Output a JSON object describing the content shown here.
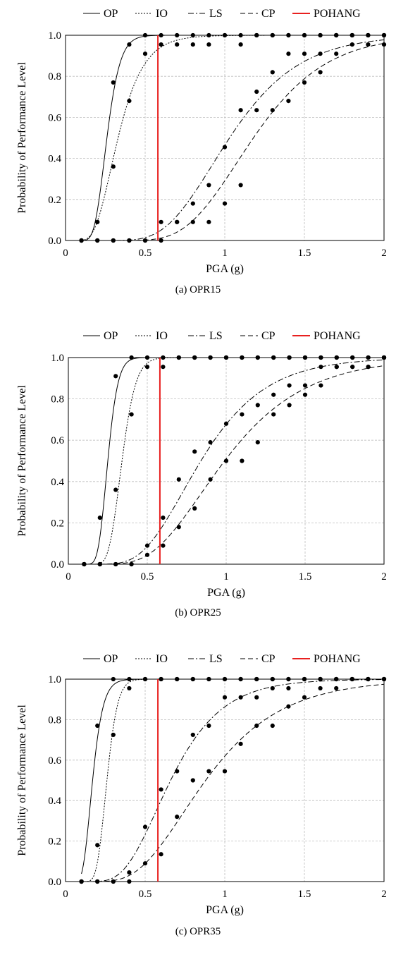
{
  "chart_data": [
    {
      "type": "line",
      "caption": "(a) OPR15",
      "xlabel": "PGA (g)",
      "ylabel": "Probability of Performance Level",
      "xlim": [
        0,
        2
      ],
      "ylim": [
        0,
        1
      ],
      "xticks": [
        "0",
        "0.5",
        "1",
        "1.5",
        "2"
      ],
      "yticks": [
        "0.0",
        "0.2",
        "0.4",
        "0.6",
        "0.8",
        "1.0"
      ],
      "grid": true,
      "legend": "top",
      "reference_line": {
        "name": "POHANG",
        "x": 0.58,
        "color": "#e8201f"
      },
      "series": [
        {
          "name": "OP",
          "style": "solid",
          "median": 0.26,
          "beta": 0.25,
          "x": [
            0.1,
            0.2,
            0.3,
            0.4,
            0.5,
            0.6,
            0.7,
            0.8,
            0.9,
            1.0,
            1.1,
            1.2,
            1.3,
            1.4,
            1.5,
            1.6,
            1.7,
            1.8,
            1.9,
            2.0
          ],
          "y": [
            0,
            0.09,
            0.77,
            0.955,
            1,
            1,
            1,
            1,
            1,
            1,
            1,
            1,
            1,
            1,
            1,
            1,
            1,
            1,
            1,
            1
          ]
        },
        {
          "name": "IO",
          "style": "dotted",
          "median": 0.33,
          "beta": 0.38,
          "x": [
            0.1,
            0.2,
            0.3,
            0.4,
            0.5,
            0.6,
            0.7,
            0.8,
            0.9,
            1.0,
            1.1,
            1.2,
            1.3,
            1.4,
            1.5,
            1.6,
            1.7,
            1.8,
            1.9,
            2.0
          ],
          "y": [
            0,
            0.09,
            0.36,
            0.68,
            0.91,
            0.955,
            0.955,
            0.955,
            0.955,
            1,
            0.955,
            1,
            1,
            1,
            1,
            1,
            1,
            1,
            1,
            1
          ]
        },
        {
          "name": "LS",
          "style": "dashdot",
          "median": 1.03,
          "beta": 0.33,
          "x": [
            0.1,
            0.2,
            0.3,
            0.4,
            0.5,
            0.6,
            0.7,
            0.8,
            0.9,
            1.0,
            1.1,
            1.2,
            1.3,
            1.4,
            1.5,
            1.6,
            1.7,
            1.8,
            1.9,
            2.0
          ],
          "y": [
            0,
            0,
            0,
            0,
            0,
            0.09,
            0.09,
            0.18,
            0.27,
            0.455,
            0.635,
            0.725,
            0.82,
            0.91,
            0.91,
            0.91,
            1,
            1,
            1,
            1
          ]
        },
        {
          "name": "CP",
          "style": "dashed",
          "median": 1.18,
          "beta": 0.3,
          "x": [
            0.1,
            0.2,
            0.3,
            0.4,
            0.5,
            0.6,
            0.7,
            0.8,
            0.9,
            1.0,
            1.1,
            1.2,
            1.3,
            1.4,
            1.5,
            1.6,
            1.7,
            1.8,
            1.9,
            2.0
          ],
          "y": [
            0,
            0,
            0,
            0,
            0,
            0,
            0.09,
            0.09,
            0.09,
            0.18,
            0.27,
            0.635,
            0.635,
            0.68,
            0.77,
            0.82,
            0.91,
            0.955,
            0.955,
            0.955
          ]
        }
      ]
    },
    {
      "type": "line",
      "caption": "(b) OPR25",
      "xlabel": "PGA (g)",
      "ylabel": "Probability of Performance Level",
      "xlim": [
        0,
        2
      ],
      "ylim": [
        0,
        1
      ],
      "xticks": [
        "0",
        "0.5",
        "1",
        "1.5",
        "2"
      ],
      "yticks": [
        "0.0",
        "0.2",
        "0.4",
        "0.6",
        "0.8",
        "1.0"
      ],
      "grid": true,
      "legend": "top",
      "reference_line": {
        "name": "POHANG",
        "x": 0.58,
        "color": "#e8201f"
      },
      "series": [
        {
          "name": "OP",
          "style": "solid",
          "median": 0.25,
          "beta": 0.2,
          "x": [
            0.1,
            0.2,
            0.3,
            0.4,
            0.5,
            0.6,
            0.7,
            0.8,
            0.9,
            1.0,
            1.1,
            1.2,
            1.3,
            1.4,
            1.5,
            1.6,
            1.7,
            1.8,
            1.9,
            2.0
          ],
          "y": [
            0,
            0.225,
            0.91,
            1,
            1,
            1,
            1,
            1,
            1,
            1,
            1,
            1,
            1,
            1,
            1,
            1,
            1,
            1,
            1,
            1
          ]
        },
        {
          "name": "IO",
          "style": "dotted",
          "median": 0.34,
          "beta": 0.2,
          "x": [
            0.1,
            0.2,
            0.3,
            0.4,
            0.5,
            0.6,
            0.7,
            0.8,
            0.9,
            1.0,
            1.1,
            1.2,
            1.3,
            1.4,
            1.5,
            1.6,
            1.7,
            1.8,
            1.9,
            2.0
          ],
          "y": [
            0,
            0,
            0.36,
            0.725,
            0.955,
            0.955,
            1,
            1,
            1,
            1,
            1,
            1,
            1,
            1,
            1,
            1,
            1,
            1,
            1,
            1
          ]
        },
        {
          "name": "LS",
          "style": "dashdot",
          "median": 0.84,
          "beta": 0.38,
          "x": [
            0.1,
            0.2,
            0.3,
            0.4,
            0.5,
            0.6,
            0.7,
            0.8,
            0.9,
            1.0,
            1.1,
            1.2,
            1.3,
            1.4,
            1.5,
            1.6,
            1.7,
            1.8,
            1.9,
            2.0
          ],
          "y": [
            0,
            0,
            0,
            0,
            0.09,
            0.225,
            0.41,
            0.545,
            0.59,
            0.68,
            0.725,
            0.77,
            0.82,
            0.865,
            0.865,
            0.955,
            0.955,
            0.955,
            0.955,
            1
          ]
        },
        {
          "name": "CP",
          "style": "dashed",
          "median": 0.99,
          "beta": 0.4,
          "x": [
            0.1,
            0.2,
            0.3,
            0.4,
            0.5,
            0.6,
            0.7,
            0.8,
            0.9,
            1.0,
            1.1,
            1.2,
            1.3,
            1.4,
            1.5,
            1.6,
            1.7,
            1.8,
            1.9,
            2.0
          ],
          "y": [
            0,
            0,
            0,
            0,
            0.045,
            0.09,
            0.18,
            0.27,
            0.41,
            0.5,
            0.5,
            0.59,
            0.725,
            0.77,
            0.82,
            0.865,
            0.955,
            0.955,
            0.955,
            1
          ]
        }
      ]
    },
    {
      "type": "line",
      "caption": "(c) OPR35",
      "xlabel": "PGA (g)",
      "ylabel": "Probability of Performance Level",
      "xlim": [
        0,
        2
      ],
      "ylim": [
        0,
        1
      ],
      "xticks": [
        "0",
        "0.5",
        "1",
        "1.5",
        "2"
      ],
      "yticks": [
        "0.0",
        "0.2",
        "0.4",
        "0.6",
        "0.8",
        "1.0"
      ],
      "grid": true,
      "legend": "top",
      "reference_line": {
        "name": "POHANG",
        "x": 0.58,
        "color": "#e8201f"
      },
      "series": [
        {
          "name": "OP",
          "style": "solid",
          "median": 0.17,
          "beta": 0.3,
          "x": [
            0.1,
            0.2,
            0.3,
            0.4,
            0.5,
            0.6,
            0.7,
            0.8,
            0.9,
            1.0,
            1.1,
            1.2,
            1.3,
            1.4,
            1.5,
            1.6,
            1.7,
            1.8,
            1.9,
            2.0
          ],
          "y": [
            0,
            0.77,
            1,
            1,
            1,
            1,
            1,
            1,
            1,
            1,
            1,
            1,
            1,
            1,
            1,
            1,
            1,
            1,
            1,
            1
          ]
        },
        {
          "name": "IO",
          "style": "dotted",
          "median": 0.26,
          "beta": 0.2,
          "x": [
            0.1,
            0.2,
            0.3,
            0.4,
            0.5,
            0.6,
            0.7,
            0.8,
            0.9,
            1.0,
            1.1,
            1.2,
            1.3,
            1.4,
            1.5,
            1.6,
            1.7,
            1.8,
            1.9,
            2.0
          ],
          "y": [
            0,
            0.18,
            0.725,
            0.955,
            1,
            1,
            1,
            1,
            1,
            1,
            1,
            1,
            1,
            1,
            1,
            1,
            1,
            1,
            1,
            1
          ]
        },
        {
          "name": "LS",
          "style": "dashdot",
          "median": 0.66,
          "beta": 0.38,
          "x": [
            0.1,
            0.2,
            0.3,
            0.4,
            0.5,
            0.6,
            0.7,
            0.8,
            0.9,
            1.0,
            1.1,
            1.2,
            1.3,
            1.4,
            1.5,
            1.6,
            1.7,
            1.8,
            1.9,
            2.0
          ],
          "y": [
            0,
            0,
            0,
            0.045,
            0.27,
            0.455,
            0.545,
            0.725,
            0.77,
            0.91,
            0.91,
            0.91,
            0.955,
            0.955,
            1,
            1,
            1,
            1,
            1,
            1
          ]
        },
        {
          "name": "CP",
          "style": "dashed",
          "median": 0.88,
          "beta": 0.42,
          "x": [
            0.1,
            0.2,
            0.3,
            0.4,
            0.5,
            0.6,
            0.7,
            0.8,
            0.9,
            1.0,
            1.1,
            1.2,
            1.3,
            1.4,
            1.5,
            1.6,
            1.7,
            1.8,
            1.9,
            2.0
          ],
          "y": [
            0,
            0,
            0,
            0,
            0.09,
            0.135,
            0.32,
            0.5,
            0.545,
            0.545,
            0.68,
            0.77,
            0.77,
            0.865,
            0.91,
            0.955,
            0.955,
            1,
            1,
            1
          ]
        }
      ]
    }
  ]
}
